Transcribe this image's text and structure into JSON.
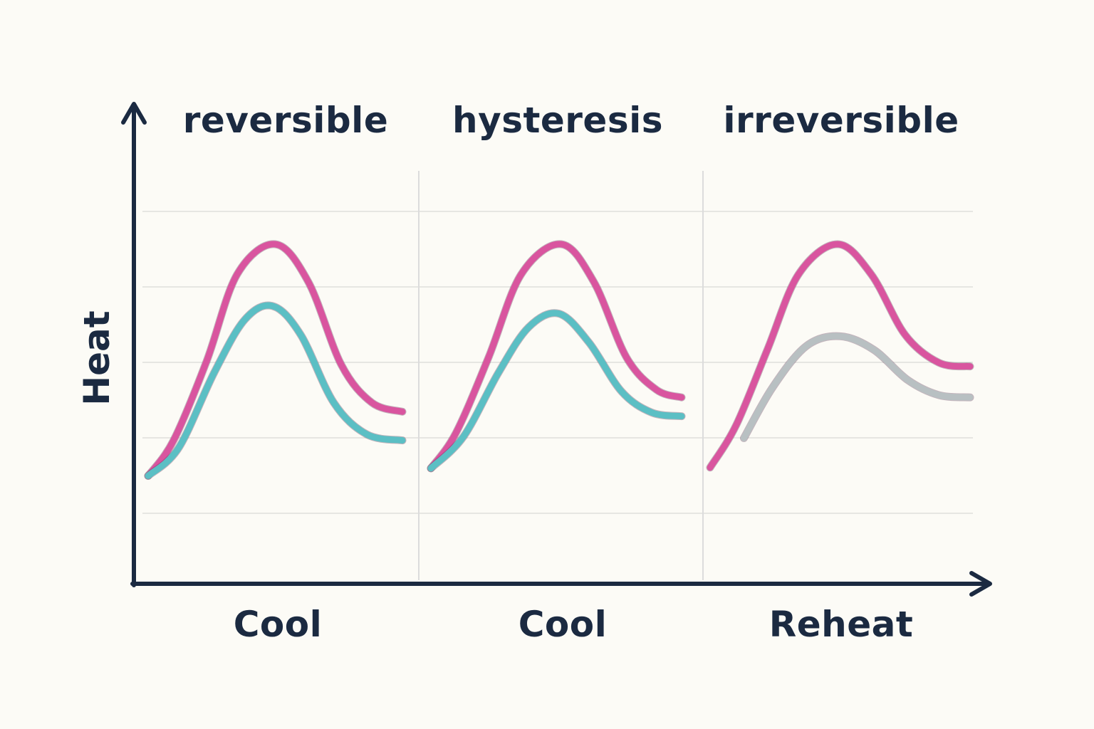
{
  "chart_data": {
    "type": "line",
    "ylabel": "Heat",
    "grid": true,
    "colors": {
      "heating": "#d9559f",
      "cooling": "#5bbfc4",
      "reheat": "#b8c0c2",
      "axis": "#1b2a41",
      "grid": "#e6e6e2",
      "background": "#fcfbf6"
    },
    "panels": [
      {
        "title": "reversible",
        "xlabel": "Cool",
        "series": [
          {
            "color": "#d9559f",
            "points": [
              [
                0,
                1.43
              ],
              [
                1,
                1.9
              ],
              [
                2.3,
                2.95
              ],
              [
                3.5,
                4.1
              ],
              [
                5,
                4.5
              ],
              [
                6.3,
                4.0
              ],
              [
                7.6,
                2.9
              ],
              [
                8.8,
                2.4
              ],
              [
                10,
                2.28
              ]
            ]
          },
          {
            "color": "#5bbfc4",
            "points": [
              [
                0,
                1.43
              ],
              [
                1.2,
                1.8
              ],
              [
                2.6,
                2.8
              ],
              [
                3.8,
                3.5
              ],
              [
                4.9,
                3.68
              ],
              [
                6,
                3.3
              ],
              [
                7.3,
                2.4
              ],
              [
                8.6,
                1.98
              ],
              [
                10,
                1.9
              ]
            ]
          }
        ]
      },
      {
        "title": "hysteresis",
        "xlabel": "Cool",
        "series": [
          {
            "color": "#d9559f",
            "points": [
              [
                0,
                1.53
              ],
              [
                1,
                2.0
              ],
              [
                2.3,
                3.0
              ],
              [
                3.6,
                4.1
              ],
              [
                5.2,
                4.5
              ],
              [
                6.5,
                4.0
              ],
              [
                7.8,
                3.0
              ],
              [
                9,
                2.57
              ],
              [
                10,
                2.47
              ]
            ]
          },
          {
            "color": "#5bbfc4",
            "points": [
              [
                0,
                1.53
              ],
              [
                1.3,
                1.95
              ],
              [
                2.7,
                2.8
              ],
              [
                3.9,
                3.4
              ],
              [
                5.1,
                3.58
              ],
              [
                6.3,
                3.2
              ],
              [
                7.6,
                2.55
              ],
              [
                8.8,
                2.27
              ],
              [
                10,
                2.22
              ]
            ]
          }
        ]
      },
      {
        "title": "irreversible",
        "xlabel": "Reheat",
        "series": [
          {
            "color": "#b8c0c2",
            "points": [
              [
                1.3,
                1.93
              ],
              [
                2.4,
                2.6
              ],
              [
                3.7,
                3.15
              ],
              [
                5,
                3.28
              ],
              [
                6.3,
                3.1
              ],
              [
                7.6,
                2.7
              ],
              [
                8.8,
                2.5
              ],
              [
                10,
                2.47
              ]
            ]
          },
          {
            "color": "#d9559f",
            "points": [
              [
                0,
                1.54
              ],
              [
                1,
                2.1
              ],
              [
                2.2,
                3.1
              ],
              [
                3.4,
                4.1
              ],
              [
                4.9,
                4.5
              ],
              [
                6.2,
                4.1
              ],
              [
                7.5,
                3.3
              ],
              [
                8.8,
                2.93
              ],
              [
                10,
                2.88
              ]
            ]
          }
        ]
      }
    ]
  }
}
